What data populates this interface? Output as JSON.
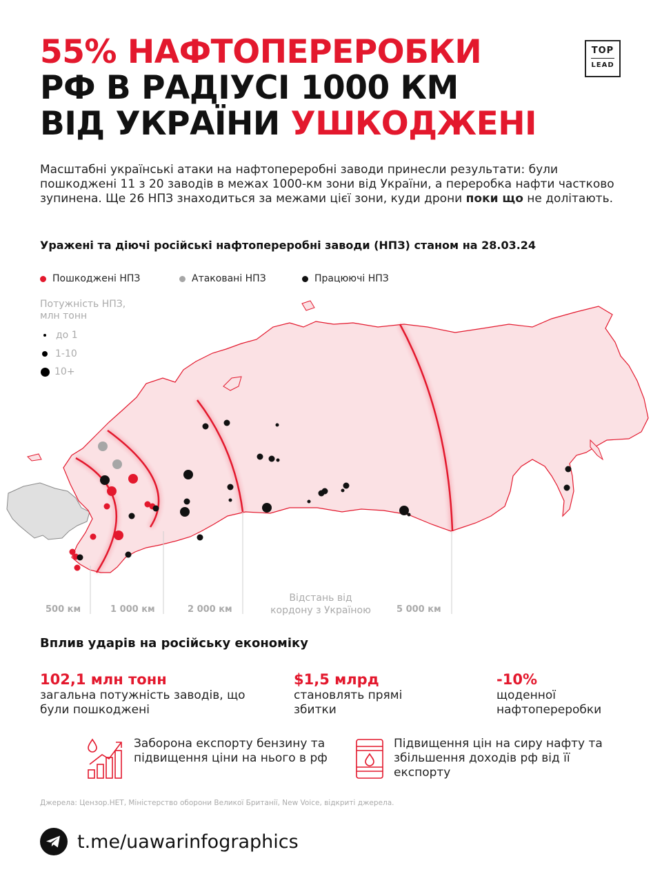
{
  "title": {
    "line1": "55% НАФТОПЕРЕРОБКИ",
    "line2": "РФ В РАДІУСІ 1000 КМ",
    "line3_plain": "ВІД УКРАЇНИ ",
    "line3_red": "УШКОДЖЕНІ"
  },
  "logo": {
    "top": "TOP",
    "bottom": "LEAD"
  },
  "intro": {
    "part1": "Масштабні українські атаки на нафтопереробні заводи принесли результати: були пошкоджені 11 з 20 заводів в межах 1000-км зони від України, а переробка нафти частково зупинена. Ще 26 НПЗ знаходиться за межами цієї зони, куди дрони ",
    "bold": "поки що",
    "part2": " не долітають."
  },
  "map_section": {
    "subtitle": "Уражені та діючі російські нафтопереробні заводи (НПЗ) станом на 28.03.24",
    "legend": [
      {
        "label": "Пошкоджені НПЗ",
        "color": "#e3182d"
      },
      {
        "label": "Атаковані НПЗ",
        "color": "#a6a6a6"
      },
      {
        "label": "Працюючі НПЗ",
        "color": "#111111"
      }
    ],
    "size_legend": {
      "title_line1": "Потужність НПЗ,",
      "title_line2": "млн тонн",
      "items": [
        "до 1",
        "1-10",
        "10+"
      ]
    },
    "distance_label_line1": "Відстань від",
    "distance_label_line2": "кордону з Україною",
    "distances": [
      "500 км",
      "1 000 км",
      "2 000 км",
      "5 000 км"
    ],
    "colors": {
      "russia_fill": "#fbe1e4",
      "russia_border": "#e3182d",
      "ukraine_fill": "#e0e0e0",
      "accent": "#e3182d"
    }
  },
  "impact": {
    "title": "Вплив ударів на російську економіку",
    "stats": [
      {
        "big": "102,1 млн тонн",
        "desc": "загальна потужність заводів, що були пошкоджені"
      },
      {
        "big": "$1,5 млрд",
        "desc": "становлять прямі збитки"
      },
      {
        "big": "-10%",
        "desc": "щоденної нафтопереробки"
      }
    ],
    "effects": [
      {
        "icon": "price-growth-icon",
        "text": "Заборона експорту бензину та підвищення ціни на нього в рф"
      },
      {
        "icon": "oil-barrel-icon",
        "text": "Підвищення цін на сиру нафту та збільшення доходів рф від її експорту"
      }
    ]
  },
  "sources": "Джерела: Цензор.НЕТ, Міністерство оборони Великої Британії, New Voice, відкриті джерела.",
  "telegram": {
    "icon": "telegram-icon",
    "link": "t.me/uawarinfographics"
  }
}
